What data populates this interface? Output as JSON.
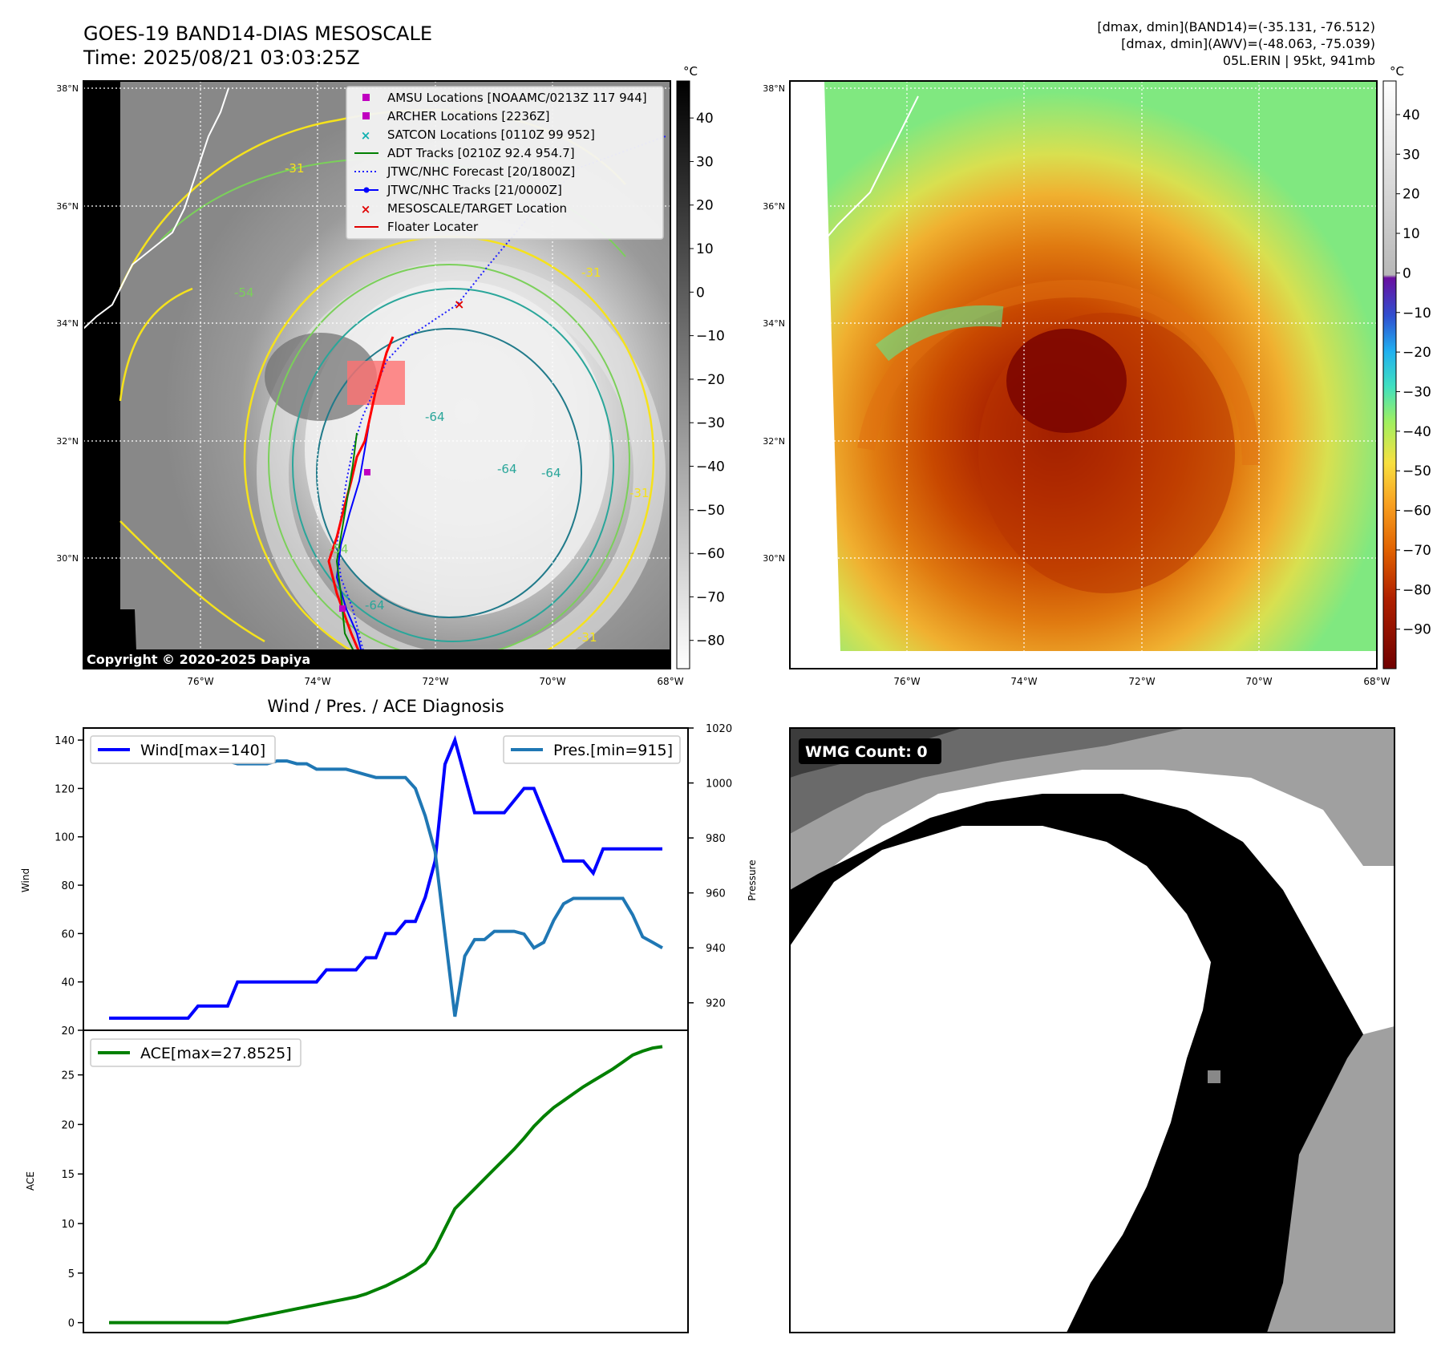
{
  "header": {
    "title_line1": "GOES-19 BAND14-DIAS MESOSCALE",
    "title_line2": "Time: 2025/08/21 03:03:25Z",
    "stat_line1": "[dmax, dmin](BAND14)=(-35.131, -76.512)",
    "stat_line2": "[dmax, dmin](AWV)=(-48.063, -75.039)",
    "stat_line3": "05L.ERIN | 95kt, 941mb"
  },
  "maps": {
    "lat_labels": [
      "38°N",
      "36°N",
      "34°N",
      "32°N",
      "30°N"
    ],
    "lon_labels": [
      "76°W",
      "74°W",
      "72°W",
      "70°W",
      "68°W"
    ],
    "copyright": "Copyright © 2020-2025 Dapiya",
    "contour_labels": [
      "-31",
      "-54",
      "-64",
      "-31",
      "-64",
      "-64",
      "-31",
      "-54",
      "-64",
      "-31"
    ],
    "legend": [
      {
        "label": "AMSU Locations [NOAAMC/0213Z 117 944]",
        "color": "#c000c0",
        "marker": "square"
      },
      {
        "label": "ARCHER Locations [2236Z]",
        "color": "#c000c0",
        "marker": "square"
      },
      {
        "label": "SATCON Locations [0110Z 99 952]",
        "color": "#10b0b0",
        "marker": "x"
      },
      {
        "label": "ADT Tracks [0210Z 92.4 954.7]",
        "color": "#008000",
        "marker": "line"
      },
      {
        "label": "JTWC/NHC Forecast [20/1800Z]",
        "color": "#2020ff",
        "marker": "dotted"
      },
      {
        "label": "JTWC/NHC Tracks [21/0000Z]",
        "color": "#0000ff",
        "marker": "line-dot"
      },
      {
        "label": "MESOSCALE/TARGET Location",
        "color": "#e00000",
        "marker": "x"
      },
      {
        "label": "Floater Locater",
        "color": "#e00000",
        "marker": "line"
      }
    ],
    "colorbar_left": {
      "unit": "°C",
      "ticks": [
        "40",
        "30",
        "20",
        "10",
        "0",
        "−10",
        "−20",
        "−30",
        "−40",
        "−50",
        "−60",
        "−70",
        "−80"
      ]
    },
    "colorbar_right": {
      "unit": "°C",
      "ticks": [
        "40",
        "30",
        "20",
        "10",
        "0",
        "−10",
        "−20",
        "−30",
        "−40",
        "−50",
        "−60",
        "−70",
        "−80",
        "−90"
      ]
    },
    "wmg_label": "WMG Count: 0"
  },
  "chart_data": [
    {
      "type": "line",
      "title": "Wind / Pres. / ACE Diagnosis",
      "ylabel": "Wind",
      "ylabel_right": "Pressure",
      "ylim": [
        20,
        145
      ],
      "ylim_right": [
        910,
        1020
      ],
      "yticks": [
        20,
        40,
        60,
        80,
        100,
        120,
        140
      ],
      "yticks_right": [
        920,
        940,
        960,
        980,
        1000,
        1020
      ],
      "series": [
        {
          "name": "Wind[max=140]",
          "color": "#0000ff",
          "x": [
            0,
            1,
            2,
            3,
            4,
            5,
            6,
            7,
            8,
            9,
            10,
            11,
            12,
            13,
            14,
            15,
            16,
            17,
            18,
            19,
            20,
            21,
            22,
            23,
            24,
            25,
            26,
            27,
            28,
            29,
            30,
            31,
            32,
            33,
            34,
            35,
            36,
            37,
            38,
            39,
            40,
            41,
            42,
            43,
            44,
            45,
            46,
            47,
            48,
            49,
            50,
            51,
            52,
            53,
            54,
            55,
            56
          ],
          "values": [
            25,
            25,
            25,
            25,
            25,
            25,
            25,
            25,
            25,
            30,
            30,
            30,
            30,
            40,
            40,
            40,
            40,
            40,
            40,
            40,
            40,
            40,
            45,
            45,
            45,
            45,
            50,
            50,
            60,
            60,
            65,
            65,
            75,
            90,
            130,
            140,
            125,
            110,
            110,
            110,
            110,
            115,
            120,
            120,
            110,
            100,
            90,
            90,
            90,
            85,
            95,
            95,
            95,
            95,
            95,
            95,
            95
          ]
        },
        {
          "name": "Pres.[min=915]",
          "color": "#1f77b4",
          "x": [
            0,
            1,
            2,
            3,
            4,
            5,
            6,
            7,
            8,
            9,
            10,
            11,
            12,
            13,
            14,
            15,
            16,
            17,
            18,
            19,
            20,
            21,
            22,
            23,
            24,
            25,
            26,
            27,
            28,
            29,
            30,
            31,
            32,
            33,
            34,
            35,
            36,
            37,
            38,
            39,
            40,
            41,
            42,
            43,
            44,
            45,
            46,
            47,
            48,
            49,
            50,
            51,
            52,
            53,
            54,
            55,
            56
          ],
          "values": [
            1015,
            1015,
            1010,
            1009,
            1008,
            1008,
            1008,
            1008,
            1008,
            1008,
            1008,
            1008,
            1008,
            1007,
            1007,
            1007,
            1007,
            1008,
            1008,
            1007,
            1007,
            1005,
            1005,
            1005,
            1005,
            1004,
            1003,
            1002,
            1002,
            1002,
            1002,
            998,
            988,
            975,
            945,
            915,
            937,
            943,
            943,
            946,
            946,
            946,
            945,
            940,
            942,
            950,
            956,
            958,
            958,
            958,
            958,
            958,
            958,
            952,
            944,
            942,
            940
          ]
        }
      ],
      "legend_positions": [
        "upper-left",
        "upper-right"
      ]
    },
    {
      "type": "line",
      "ylabel": "ACE",
      "ylim": [
        -1,
        29.5
      ],
      "yticks": [
        0,
        5,
        10,
        15,
        20,
        25
      ],
      "series": [
        {
          "name": "ACE[max=27.8525]",
          "color": "#008000",
          "x": [
            0,
            1,
            2,
            3,
            4,
            5,
            6,
            7,
            8,
            9,
            10,
            11,
            12,
            13,
            14,
            15,
            16,
            17,
            18,
            19,
            20,
            21,
            22,
            23,
            24,
            25,
            26,
            27,
            28,
            29,
            30,
            31,
            32,
            33,
            34,
            35,
            36,
            37,
            38,
            39,
            40,
            41,
            42,
            43,
            44,
            45,
            46,
            47,
            48,
            49,
            50,
            51,
            52,
            53,
            54,
            55,
            56
          ],
          "values": [
            0,
            0,
            0,
            0,
            0,
            0,
            0,
            0,
            0,
            0,
            0,
            0,
            0,
            0.2,
            0.4,
            0.6,
            0.8,
            1.0,
            1.2,
            1.4,
            1.6,
            1.8,
            2.0,
            2.2,
            2.4,
            2.6,
            2.9,
            3.3,
            3.7,
            4.2,
            4.7,
            5.3,
            6.0,
            7.5,
            9.5,
            11.5,
            12.5,
            13.5,
            14.5,
            15.5,
            16.5,
            17.5,
            18.6,
            19.8,
            20.8,
            21.7,
            22.4,
            23.1,
            23.8,
            24.4,
            25.0,
            25.6,
            26.3,
            27.0,
            27.4,
            27.7,
            27.85
          ]
        }
      ],
      "legend_positions": [
        "upper-left"
      ]
    }
  ]
}
